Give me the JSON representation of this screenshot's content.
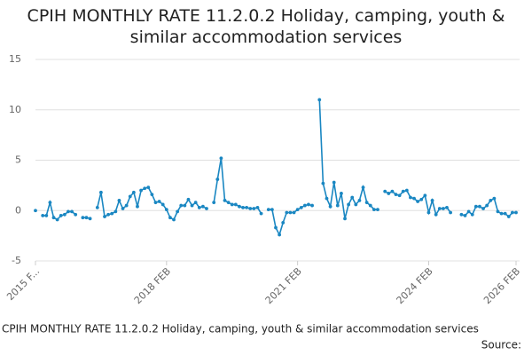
{
  "chart_data": {
    "type": "line",
    "title": "CPIH MONTHLY RATE 11.2.0.2 Holiday, camping, youth & similar accommodation services",
    "caption": "CPIH MONTHLY RATE 11.2.0.2 Holiday, camping, youth & similar accommodation services",
    "source": "Source:",
    "categories": [
      "2015 F...",
      null,
      null,
      null,
      null,
      null,
      null,
      null,
      null,
      null,
      null,
      null,
      null,
      null,
      null,
      null,
      null,
      null,
      null,
      null,
      null,
      null,
      null,
      null,
      null,
      null,
      null,
      null,
      null,
      null,
      null,
      null,
      null,
      null,
      null,
      null,
      "2018 FEB",
      null,
      null,
      null,
      null,
      null,
      null,
      null,
      null,
      null,
      null,
      null,
      null,
      null,
      null,
      null,
      null,
      null,
      null,
      null,
      null,
      null,
      null,
      null,
      null,
      null,
      null,
      null,
      null,
      null,
      null,
      null,
      null,
      null,
      null,
      null,
      "2021 FEB",
      null,
      null,
      null,
      null,
      null,
      null,
      null,
      null,
      null,
      null,
      null,
      null,
      null,
      null,
      null,
      null,
      null,
      null,
      null,
      null,
      null,
      null,
      null,
      null,
      null,
      null,
      null,
      null,
      null,
      null,
      null,
      null,
      null,
      null,
      null,
      "2024 FEB",
      null,
      null,
      null,
      null,
      null,
      null,
      null,
      null,
      null,
      null,
      null,
      null,
      null,
      null,
      null,
      null,
      null,
      null,
      null,
      null,
      null,
      null,
      null,
      "2026 FEB"
    ],
    "series": [
      {
        "name": "CPIH MONTHLY RATE 11.2.0.2",
        "color": "#1a87c2",
        "values": [
          0,
          null,
          -0.5,
          -0.5,
          0.8,
          -0.7,
          -0.9,
          -0.5,
          -0.4,
          -0.1,
          -0.1,
          -0.4,
          null,
          -0.7,
          -0.7,
          -0.8,
          null,
          0.3,
          1.8,
          -0.6,
          -0.4,
          -0.3,
          -0.1,
          1.0,
          0.2,
          0.5,
          1.4,
          1.8,
          0.4,
          2.0,
          2.2,
          2.3,
          1.6,
          0.8,
          0.9,
          0.6,
          0.1,
          -0.7,
          -0.9,
          -0.1,
          0.5,
          0.5,
          1.1,
          0.5,
          0.8,
          0.3,
          0.4,
          0.2,
          null,
          0.8,
          3.1,
          5.2,
          1.0,
          0.8,
          0.6,
          0.6,
          0.4,
          0.3,
          0.3,
          0.2,
          0.2,
          0.3,
          -0.3,
          null,
          0.1,
          0.1,
          -1.7,
          -2.4,
          -1.2,
          -0.2,
          -0.2,
          -0.2,
          0.1,
          0.3,
          0.5,
          0.6,
          0.5,
          null,
          11.0,
          2.7,
          1.2,
          0.4,
          2.8,
          0.5,
          1.7,
          -0.8,
          0.6,
          1.3,
          0.6,
          1.0,
          2.3,
          0.8,
          0.5,
          0.1,
          0.1,
          null,
          1.9,
          1.7,
          1.9,
          1.6,
          1.5,
          1.9,
          2.0,
          1.3,
          1.2,
          0.9,
          1.1,
          1.5,
          -0.2,
          1.0,
          -0.4,
          0.2,
          0.2,
          0.3,
          -0.2,
          null,
          null,
          -0.4,
          -0.5,
          -0.1,
          -0.4,
          0.4,
          0.4,
          0.2,
          0.5,
          1.0,
          1.2,
          -0.1,
          -0.3,
          -0.3,
          -0.6,
          -0.2,
          -0.2
        ]
      }
    ],
    "ylim": [
      -5,
      15
    ],
    "yticks": [
      -5,
      0,
      5,
      10,
      15
    ],
    "grid": true
  }
}
